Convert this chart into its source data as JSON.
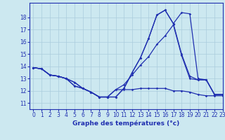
{
  "title": "Graphe des températures (°c)",
  "xlim": [
    -0.5,
    23
  ],
  "ylim": [
    10.5,
    19.2
  ],
  "xticks": [
    0,
    1,
    2,
    3,
    4,
    5,
    6,
    7,
    8,
    9,
    10,
    11,
    12,
    13,
    14,
    15,
    16,
    17,
    18,
    19,
    20,
    21,
    22,
    23
  ],
  "yticks": [
    11,
    12,
    13,
    14,
    15,
    16,
    17,
    18
  ],
  "bg_color": "#cce8f0",
  "grid_color": "#aaccdd",
  "line_color": "#2030b0",
  "lines": [
    [
      13.9,
      13.8,
      13.3,
      13.2,
      13.0,
      12.7,
      12.2,
      11.9,
      11.5,
      11.5,
      12.1,
      12.1,
      12.1,
      12.2,
      12.2,
      12.2,
      12.2,
      12.0,
      12.0,
      11.9,
      11.7,
      11.6,
      11.6,
      11.6
    ],
    [
      13.9,
      13.8,
      13.3,
      13.2,
      13.0,
      12.7,
      12.2,
      11.9,
      11.5,
      11.5,
      12.1,
      12.5,
      13.3,
      14.1,
      14.8,
      15.8,
      16.5,
      17.4,
      14.9,
      13.0,
      12.9,
      12.9,
      11.7,
      11.7
    ],
    [
      13.9,
      13.8,
      13.3,
      13.2,
      13.0,
      12.4,
      12.2,
      11.9,
      11.5,
      11.5,
      11.5,
      12.2,
      13.5,
      14.7,
      16.3,
      18.2,
      18.6,
      17.5,
      15.0,
      13.2,
      12.9,
      12.9,
      11.7,
      11.7
    ],
    [
      13.9,
      13.8,
      13.3,
      13.2,
      13.0,
      12.4,
      12.2,
      11.9,
      11.5,
      11.5,
      11.5,
      12.2,
      13.5,
      14.7,
      16.3,
      18.2,
      18.6,
      17.5,
      18.4,
      18.3,
      13.0,
      12.9,
      11.7,
      11.7
    ]
  ]
}
